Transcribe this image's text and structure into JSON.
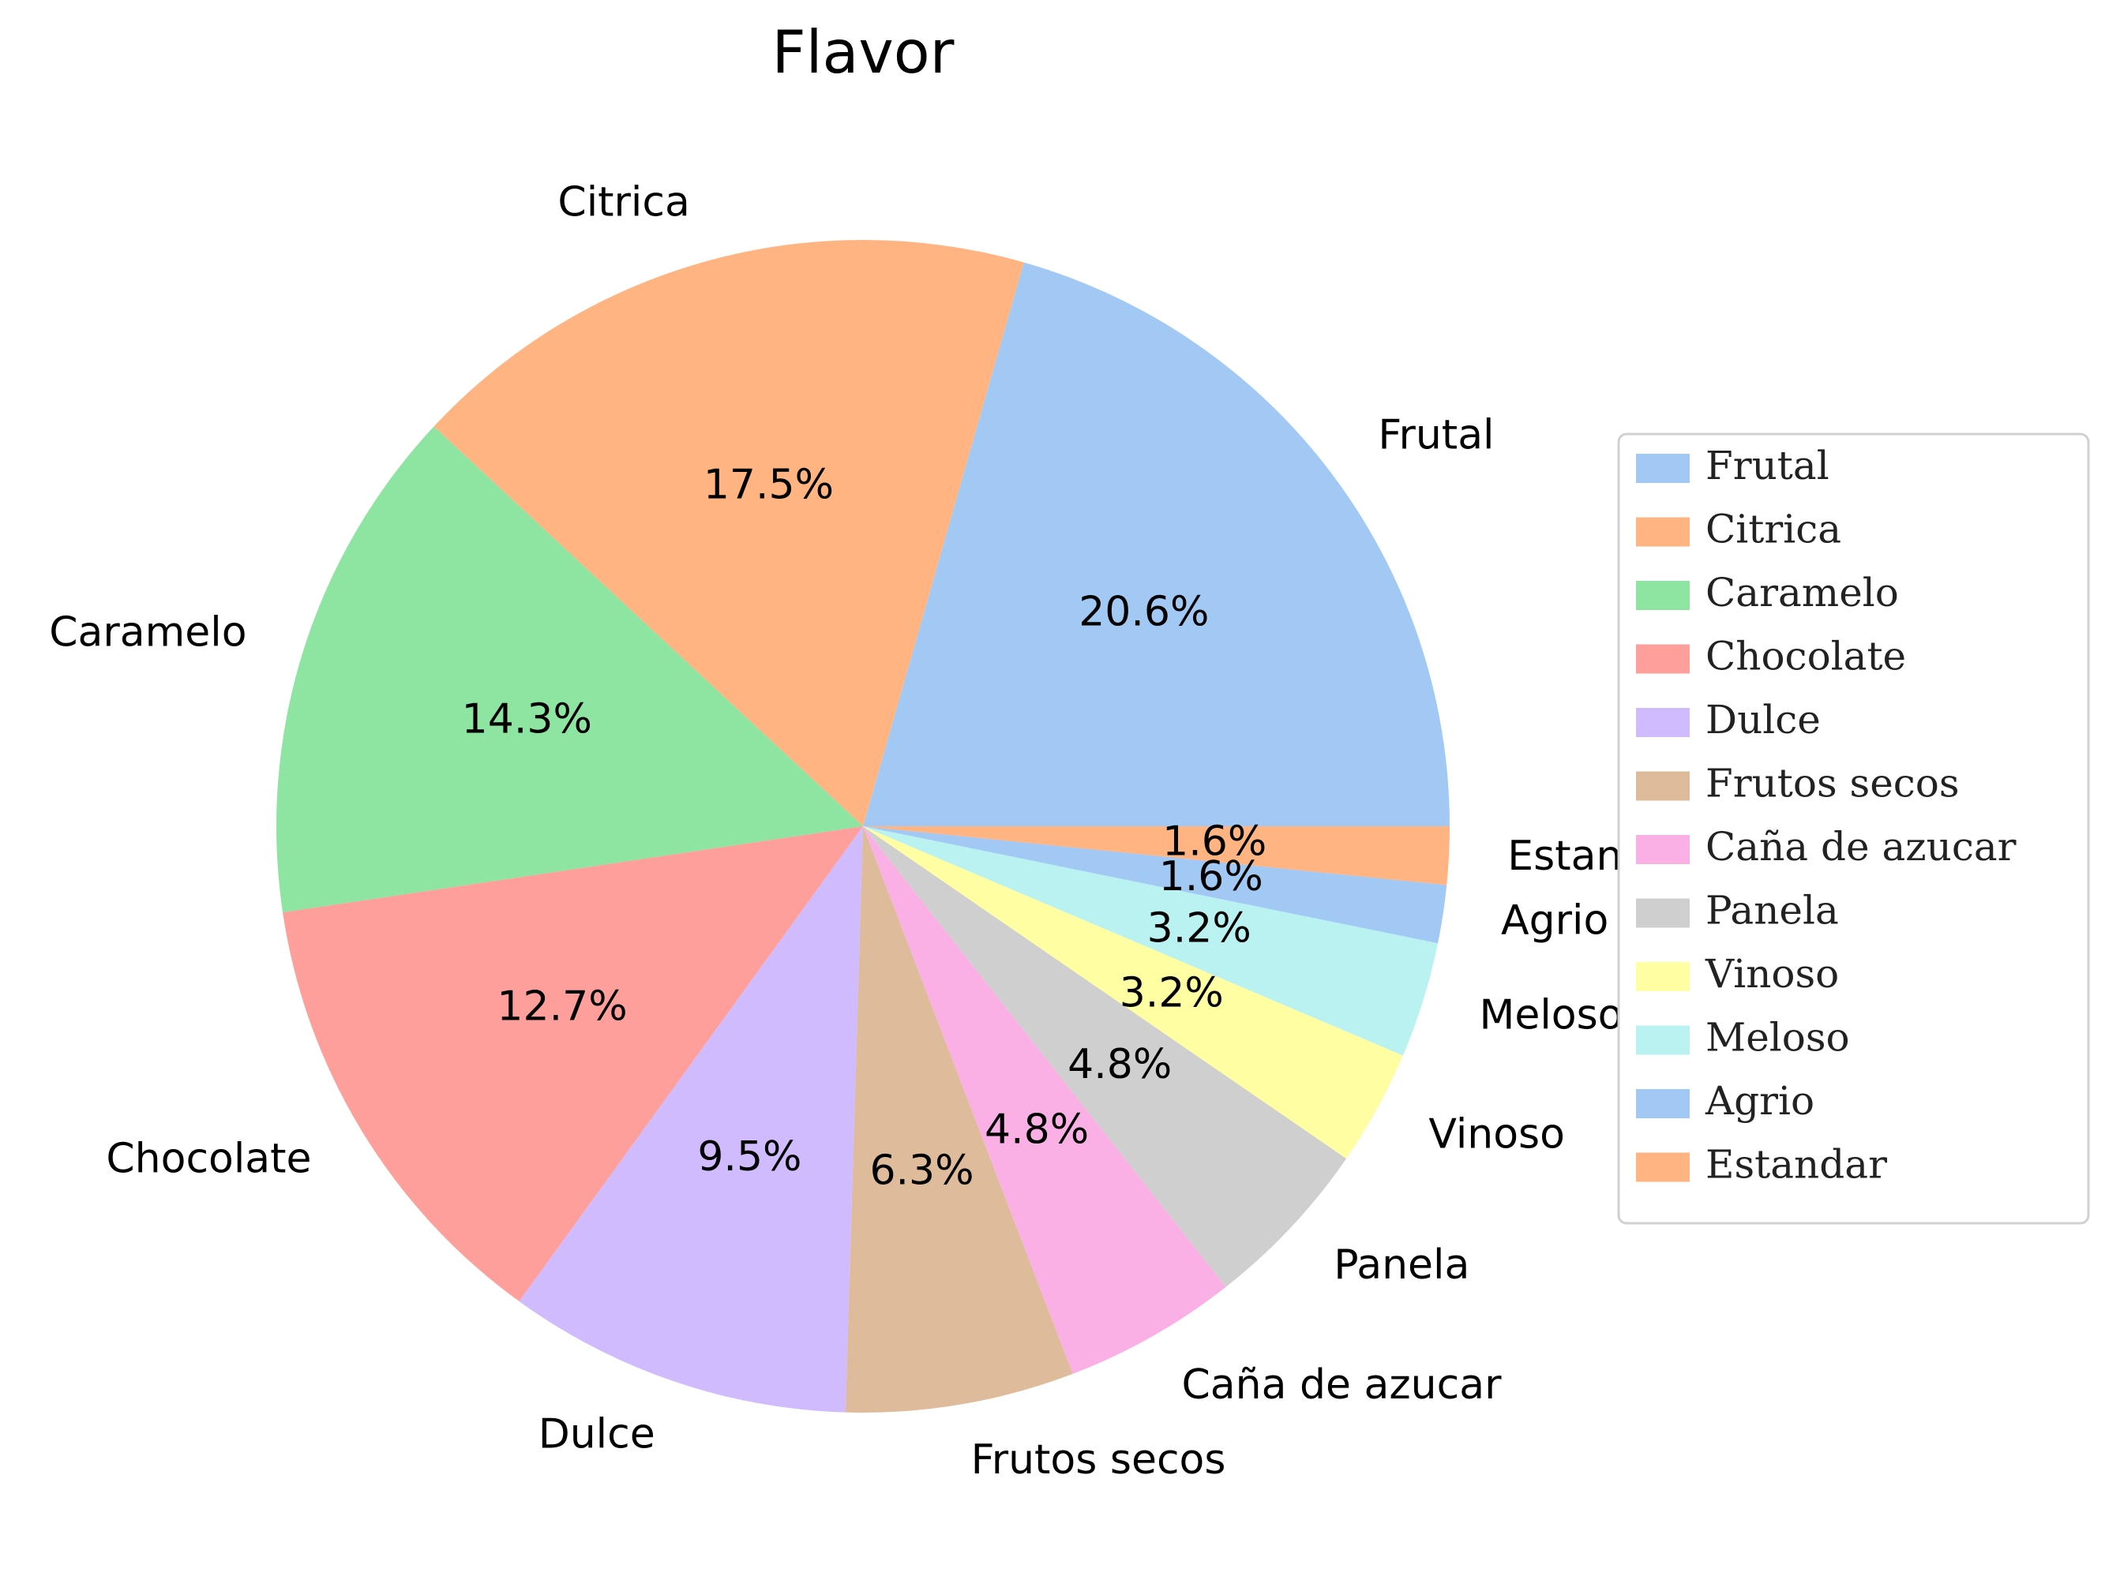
{
  "chart_data": {
    "type": "pie",
    "title": "Flavor",
    "categories": [
      "Frutal",
      "Citrica",
      "Caramelo",
      "Chocolate",
      "Dulce",
      "Frutos secos",
      "Caña de azucar",
      "Panela",
      "Vinoso",
      "Meloso",
      "Agrio",
      "Estandar"
    ],
    "values": [
      20.6,
      17.5,
      14.3,
      12.7,
      9.5,
      6.3,
      4.8,
      4.8,
      3.2,
      3.2,
      1.6,
      1.6
    ],
    "percent_labels": [
      "20.6%",
      "17.5%",
      "14.3%",
      "12.7%",
      "9.5%",
      "6.3%",
      "4.8%",
      "4.8%",
      "3.2%",
      "3.2%",
      "1.6%",
      "1.6%"
    ],
    "colors": [
      "#a1c9f4",
      "#ffb482",
      "#8de5a1",
      "#ff9f9b",
      "#d0bbff",
      "#debb9b",
      "#fab0e4",
      "#cfcfcf",
      "#fffea3",
      "#b9f2f0",
      "#a1c9f4",
      "#ffb482"
    ],
    "start_angle_deg": 0,
    "direction": "counterclockwise",
    "legend": {
      "position": "right",
      "entries": [
        "Frutal",
        "Citrica",
        "Caramelo",
        "Chocolate",
        "Dulce",
        "Frutos secos",
        "Caña de azucar",
        "Panela",
        "Vinoso",
        "Meloso",
        "Agrio",
        "Estandar"
      ]
    }
  }
}
